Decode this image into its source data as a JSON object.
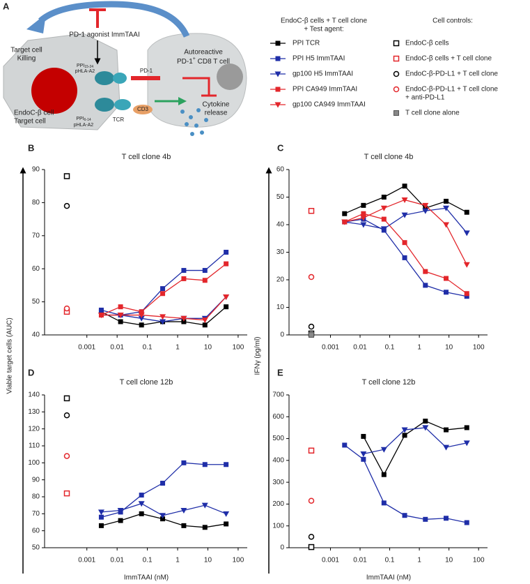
{
  "diagram": {
    "panel": "A",
    "agonist": "PD-1 agonist ImmTAAI",
    "killing": [
      "Target cell",
      "Killing"
    ],
    "tcell_line1": "Autoreactive",
    "tcell_line2": {
      "main": "PD-1",
      "sup": "+",
      "rest": " CD8 T cell"
    },
    "pd1": "PD-1",
    "cytokine": [
      "Cytokine",
      "release"
    ],
    "endoc": [
      "EndoC-β cell",
      "Target cell"
    ],
    "pep_top": {
      "main": "PPI",
      "sub": "15-24",
      "line2": "pHLA-A2"
    },
    "pep_bottom": {
      "main": "PPI",
      "sub": "6-14",
      "line2": "pHLA-A2"
    },
    "tcr": "TCR",
    "cd3": "CD3"
  },
  "legend": {
    "title": [
      "EndoC-β cells + T cell clone",
      "+ Test agent:"
    ],
    "series": [
      {
        "name": "PPI TCR",
        "color": "#000000",
        "marker": "square"
      },
      {
        "name": "PPI H5 ImmTAAI",
        "color": "#1f2ea8",
        "marker": "square"
      },
      {
        "name": "gp100 H5 ImmTAAI",
        "color": "#1f2ea8",
        "marker": "triangle"
      },
      {
        "name": "PPI CA949 ImmTAAI",
        "color": "#e3262b",
        "marker": "square"
      },
      {
        "name": "gp100 CA949 ImmTAAI",
        "color": "#e3262b",
        "marker": "triangle"
      }
    ]
  },
  "controls_legend": {
    "title": "Cell controls:",
    "entries": [
      {
        "name": [
          "EndoC-β cells"
        ],
        "color": "#000000",
        "marker": "open-square"
      },
      {
        "name": [
          "EndoC-β cells + T cell clone"
        ],
        "color": "#e3262b",
        "marker": "open-square"
      },
      {
        "name": [
          "EndoC-β-PD-L1 + T cell clone"
        ],
        "color": "#000000",
        "marker": "open-circle"
      },
      {
        "name": [
          "EndoC-β-PD-L1 + T cell clone",
          "+ anti-PD-L1"
        ],
        "color": "#e3262b",
        "marker": "open-circle"
      },
      {
        "name": [
          "T cell clone alone"
        ],
        "color": "#888888",
        "marker": "hatched-square"
      }
    ]
  },
  "chart_data": [
    {
      "type": "scatter",
      "panel": "B",
      "title": "T cell clone 4b",
      "ylabel": "Viable target cells (AUC)",
      "xlog": true,
      "xlim": [
        4e-05,
        200
      ],
      "xticks": [
        0.001,
        0.01,
        0.1,
        1,
        10,
        100
      ],
      "ylim": [
        40,
        90
      ],
      "yticks": [
        40,
        50,
        60,
        70,
        80,
        90
      ],
      "fit_lines": true,
      "x": [
        0.003,
        0.013,
        0.064,
        0.32,
        1.6,
        8,
        40
      ],
      "series": [
        {
          "values": [
            47,
            44,
            43,
            44,
            44,
            43,
            48.5
          ]
        },
        {
          "values": [
            47.5,
            46,
            47,
            54,
            59.5,
            59.5,
            65
          ]
        },
        {
          "values": [
            46,
            46,
            45,
            44,
            45,
            45,
            51.5
          ]
        },
        {
          "values": [
            46,
            48.5,
            47,
            52.5,
            57,
            56.5,
            61.5
          ]
        },
        {
          "values": [
            46,
            46,
            46,
            45.5,
            45,
            44.5,
            51.5
          ]
        }
      ],
      "controls": [
        88,
        47,
        79,
        48,
        null
      ]
    },
    {
      "type": "scatter",
      "panel": "C",
      "title": "T cell clone 4b",
      "ylabel": "IFNγ (pg/ml)",
      "xlog": true,
      "xlim": [
        4e-05,
        200
      ],
      "xticks": [
        0.001,
        0.01,
        0.1,
        1,
        10,
        100
      ],
      "ylim": [
        0,
        60
      ],
      "yticks": [
        0,
        10,
        20,
        30,
        40,
        50,
        60
      ],
      "fit_lines": true,
      "x": [
        0.003,
        0.013,
        0.064,
        0.32,
        1.6,
        8,
        40
      ],
      "series": [
        {
          "values": [
            44,
            47,
            50,
            54,
            46,
            48.5,
            44.5
          ]
        },
        {
          "values": [
            41,
            42,
            38,
            28,
            18,
            15.5,
            14
          ]
        },
        {
          "values": [
            41,
            40,
            38.5,
            43.5,
            45,
            46,
            37
          ]
        },
        {
          "values": [
            41,
            44,
            42,
            33.5,
            23,
            20.5,
            15
          ]
        },
        {
          "values": [
            41,
            42.5,
            46,
            49,
            47,
            40,
            25.5
          ]
        }
      ],
      "controls": [
        0.5,
        45,
        3,
        21,
        0
      ]
    },
    {
      "type": "scatter",
      "panel": "D",
      "title": "T cell clone 12b",
      "xlabel": "ImmTAAI (nM)",
      "xlog": true,
      "xlim": [
        4e-05,
        200
      ],
      "xticks": [
        0.001,
        0.01,
        0.1,
        1,
        10,
        100
      ],
      "ylim": [
        50,
        140
      ],
      "yticks": [
        50,
        60,
        70,
        80,
        90,
        100,
        110,
        120,
        130,
        140
      ],
      "fit_lines": true,
      "x": [
        0.003,
        0.013,
        0.064,
        0.32,
        1.6,
        8,
        40
      ],
      "series": [
        {
          "values": [
            63,
            66,
            70,
            67,
            63,
            62,
            64
          ]
        },
        {
          "values": [
            68,
            71,
            81,
            88,
            100,
            99,
            99
          ]
        },
        {
          "values": [
            71,
            72,
            76,
            69,
            72,
            75,
            70
          ]
        }
      ],
      "controls": [
        138,
        82,
        128,
        104,
        null
      ]
    },
    {
      "type": "scatter",
      "panel": "E",
      "title": "T cell clone 12b",
      "xlabel": "ImmTAAI (nM)",
      "xlog": true,
      "xlim": [
        4e-05,
        200
      ],
      "xticks": [
        0.001,
        0.01,
        0.1,
        1,
        10,
        100
      ],
      "ylim": [
        0,
        700
      ],
      "yticks": [
        0,
        100,
        200,
        300,
        400,
        500,
        600,
        700
      ],
      "fit_lines": true,
      "x": [
        0.003,
        0.013,
        0.064,
        0.32,
        1.6,
        8,
        40
      ],
      "series": [
        {
          "values": [
            null,
            510,
            335,
            515,
            580,
            540,
            550
          ]
        },
        {
          "values": [
            470,
            405,
            205,
            148,
            130,
            135,
            115
          ]
        },
        {
          "values": [
            null,
            430,
            450,
            540,
            550,
            460,
            480
          ]
        }
      ],
      "controls": [
        3,
        445,
        50,
        215,
        null
      ]
    }
  ]
}
